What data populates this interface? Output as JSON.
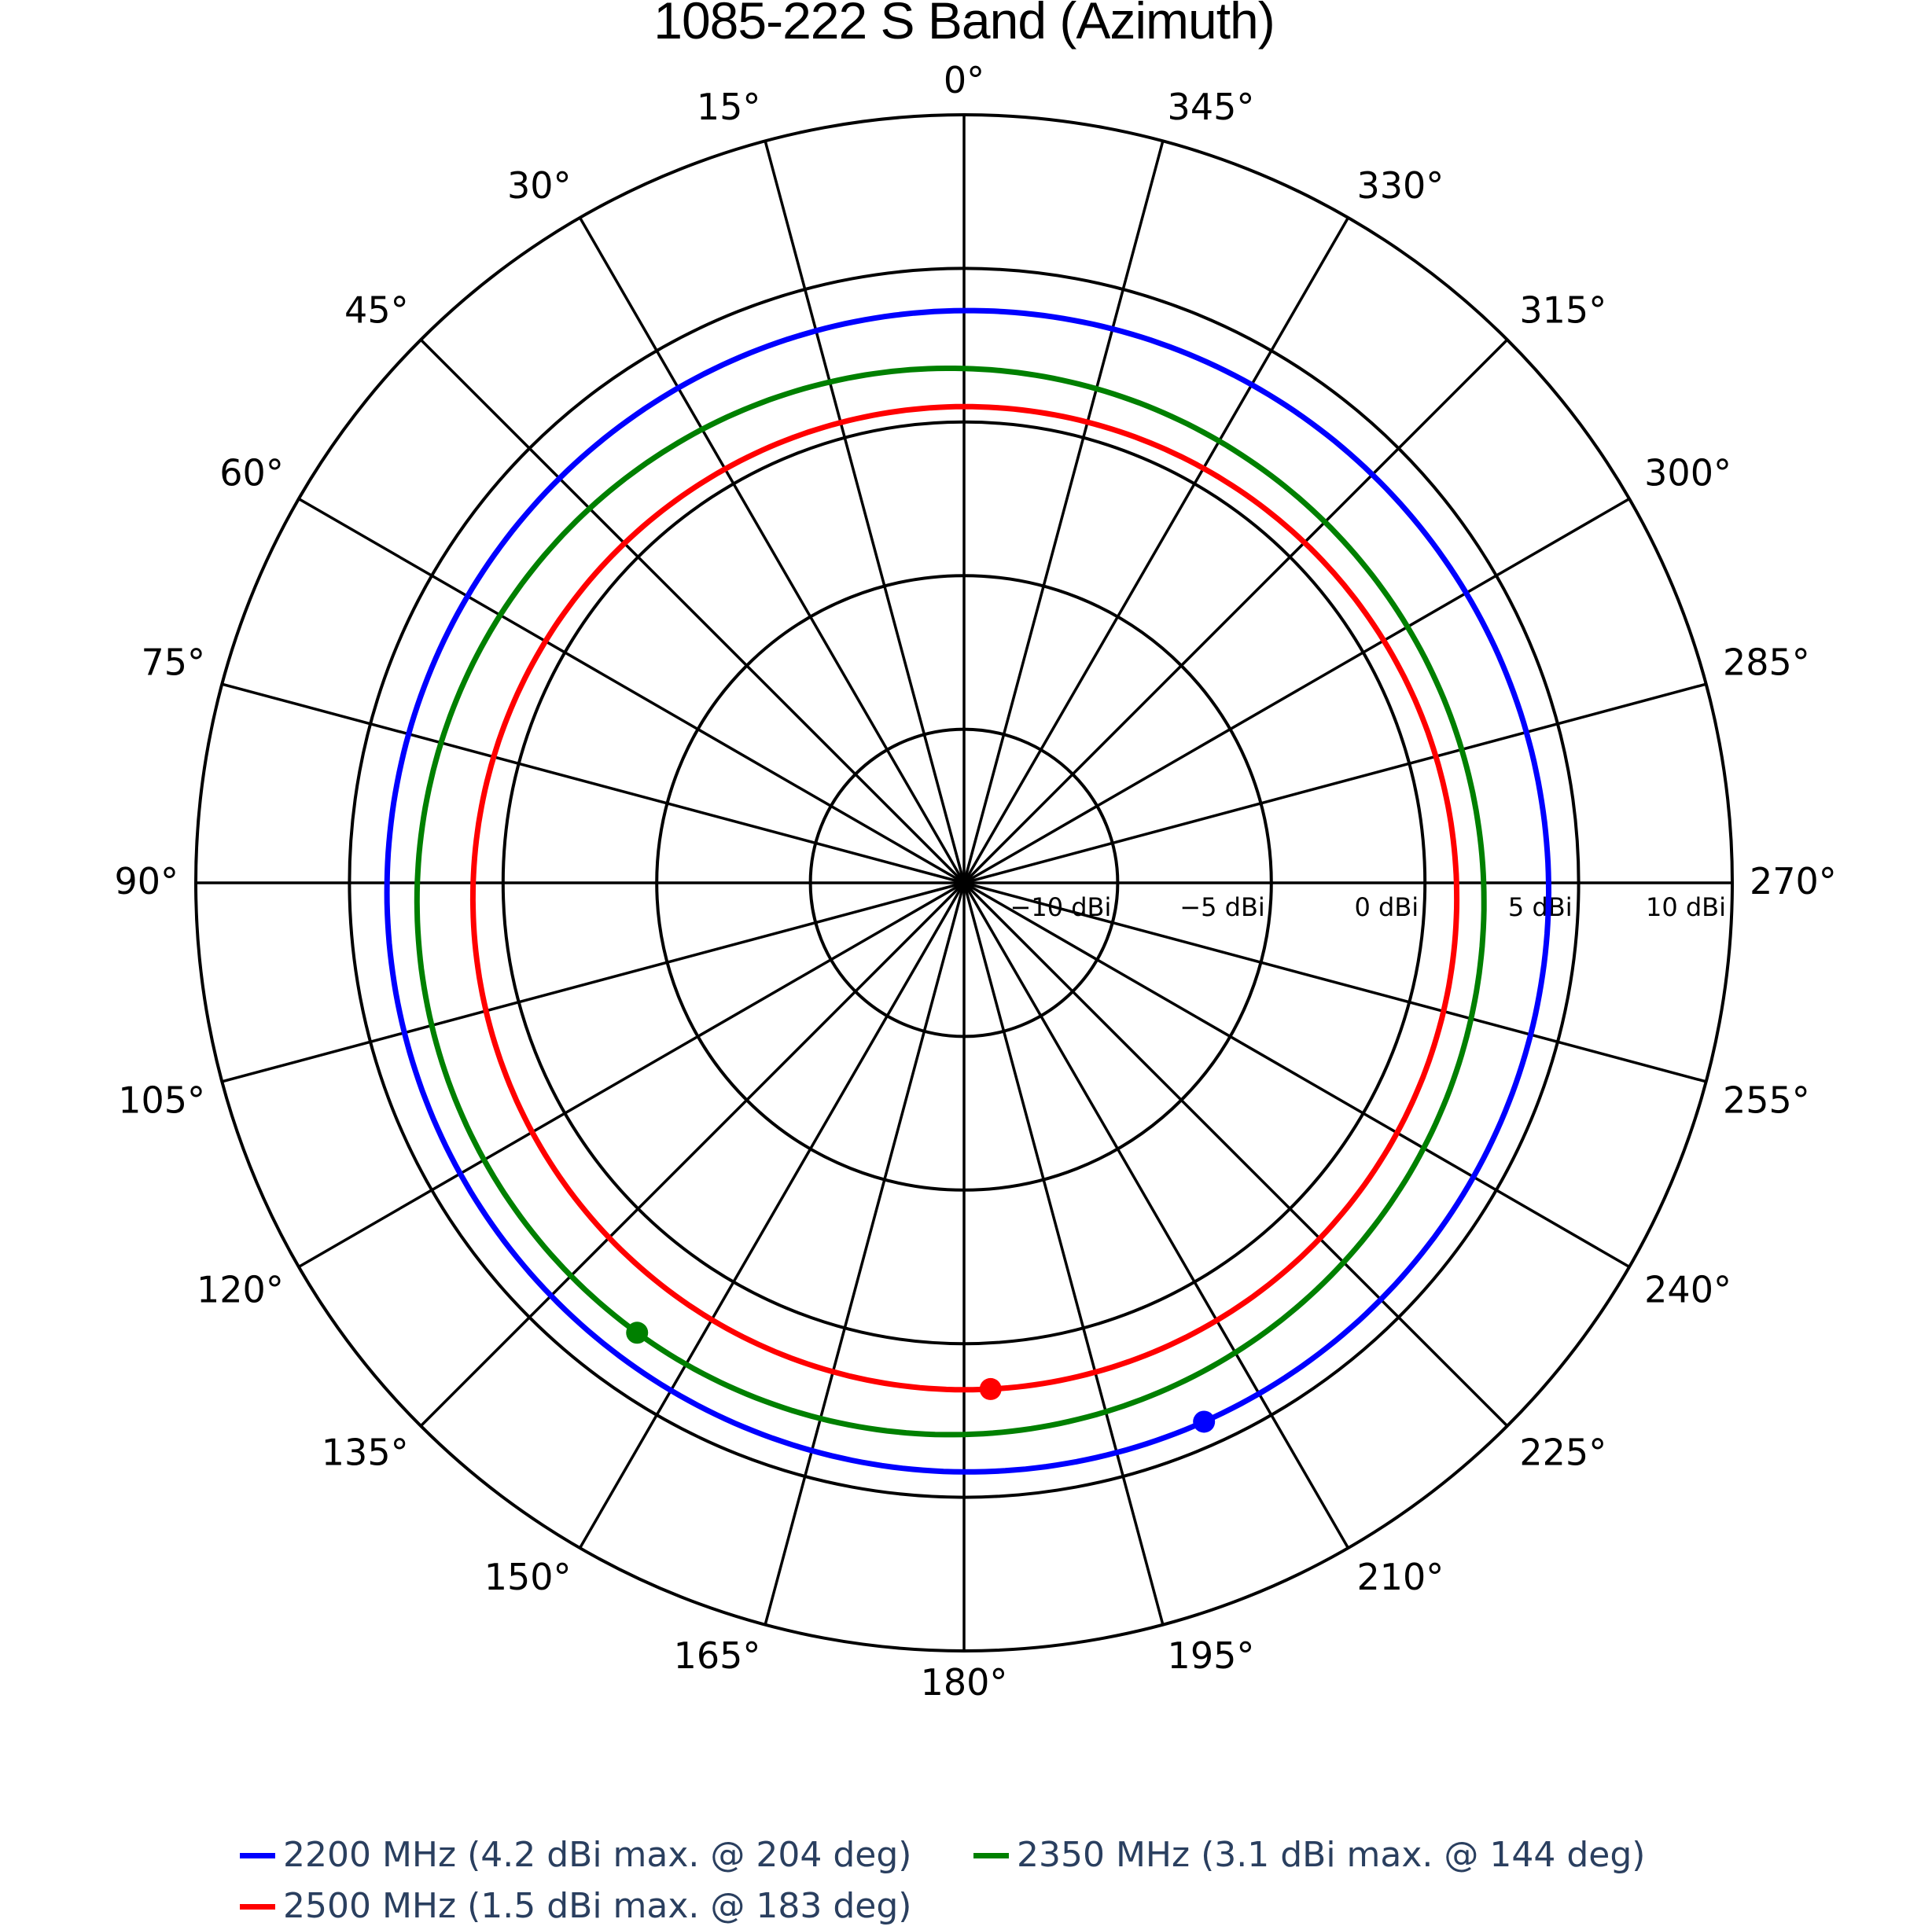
{
  "chart_data": {
    "type": "polar-line",
    "title": "1085-222 S Band (Azimuth)",
    "angular_axis": {
      "direction": "counterclockwise",
      "rotation_zero": "top",
      "tick_labels": [
        "0°",
        "15°",
        "30°",
        "45°",
        "60°",
        "75°",
        "90°",
        "105°",
        "120°",
        "135°",
        "150°",
        "165°",
        "180°",
        "195°",
        "210°",
        "225°",
        "240°",
        "255°",
        "270°",
        "285°",
        "300°",
        "315°",
        "330°",
        "345°"
      ],
      "tick_step_deg": 15
    },
    "radial_axis": {
      "range": [
        -15,
        10
      ],
      "tick_values": [
        -10,
        -5,
        0,
        5,
        10
      ],
      "tick_labels": [
        "−10 dBi",
        "−5 dBi",
        "0 dBi",
        "5 dBi",
        "10 dBi"
      ],
      "unit": "dBi",
      "label_angle_deg": 270
    },
    "grid": true,
    "legend_position": "bottom",
    "series": [
      {
        "name": "2200 MHz (4.2 dBi max. @ 204 deg)",
        "frequency_mhz": 2200,
        "color": "#0000ff",
        "max_dbi": 4.2,
        "max_angle_deg": 204,
        "samples": [
          {
            "angle": 0,
            "dbi": 3.8
          },
          {
            "angle": 90,
            "dbi": 3.6
          },
          {
            "angle": 180,
            "dbi": 4.05
          },
          {
            "angle": 204,
            "dbi": 4.2
          },
          {
            "angle": 270,
            "dbi": 3.9
          }
        ],
        "model": {
          "mean": 3.9,
          "amplitude": 0.3
        }
      },
      {
        "name": "2350 MHz (3.1 dBi max. @ 144 deg)",
        "frequency_mhz": 2350,
        "color": "#008000",
        "max_dbi": 3.1,
        "max_angle_deg": 144,
        "samples": [
          {
            "angle": 0,
            "dbi": 2.4
          },
          {
            "angle": 90,
            "dbi": 2.7
          },
          {
            "angle": 144,
            "dbi": 3.1
          },
          {
            "angle": 180,
            "dbi": 2.8
          },
          {
            "angle": 270,
            "dbi": 1.6
          }
        ],
        "model": {
          "mean": 2.35,
          "amplitude": 0.75
        }
      },
      {
        "name": "2500 MHz (1.5 dBi max. @ 183 deg)",
        "frequency_mhz": 2500,
        "color": "#ff0000",
        "max_dbi": 1.5,
        "max_angle_deg": 183,
        "samples": [
          {
            "angle": 0,
            "dbi": 0.95
          },
          {
            "angle": 90,
            "dbi": 1.1
          },
          {
            "angle": 180,
            "dbi": 1.45
          },
          {
            "angle": 183,
            "dbi": 1.5
          },
          {
            "angle": 270,
            "dbi": 0.85
          }
        ],
        "model": {
          "mean": 1.0,
          "amplitude": 0.5
        }
      }
    ]
  },
  "legend": {
    "items": [
      {
        "label": "2200 MHz (4.2 dBi max. @ 204 deg)",
        "color": "#0000ff"
      },
      {
        "label": "2350 MHz (3.1 dBi max. @ 144 deg)",
        "color": "#008000"
      },
      {
        "label": "2500 MHz (1.5 dBi max. @ 183 deg)",
        "color": "#ff0000"
      }
    ]
  }
}
